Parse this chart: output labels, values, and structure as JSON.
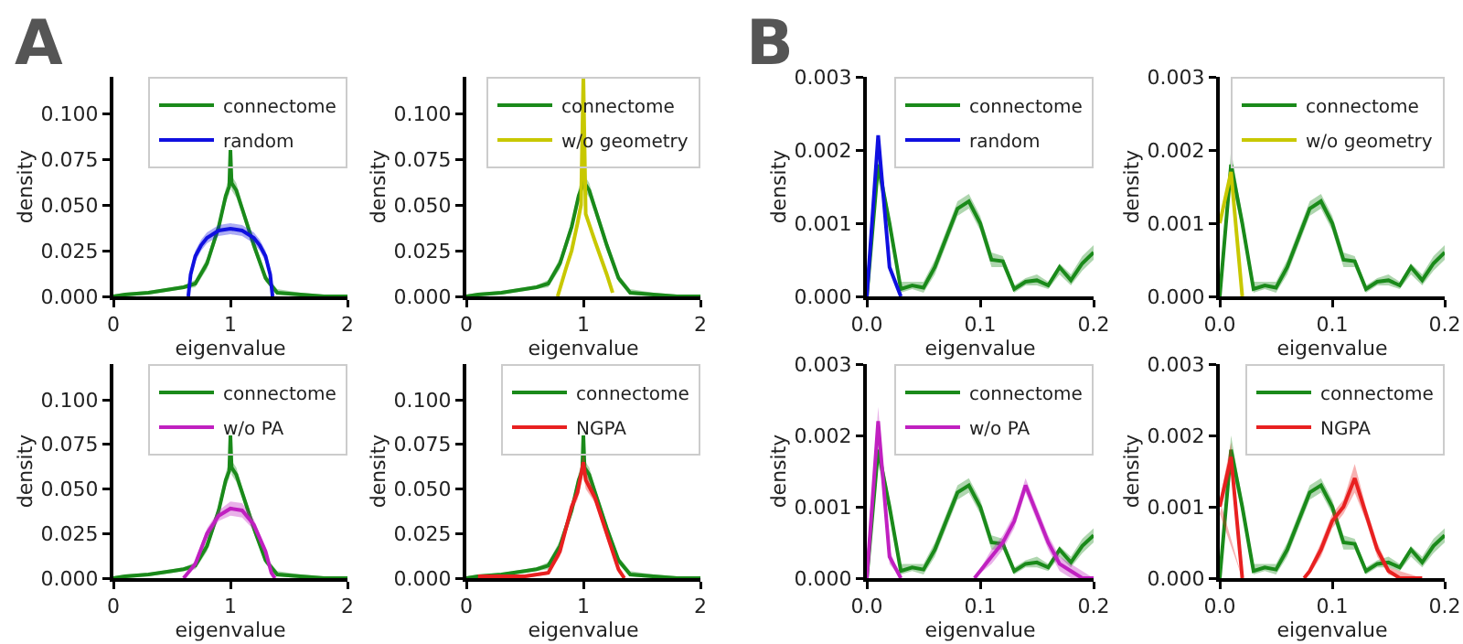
{
  "chart_data": [
    {
      "type": "line",
      "annotations": [
        "A"
      ],
      "xlabel": "eigenvalue",
      "ylabel": "density",
      "xlim": [
        0,
        2
      ],
      "xticks": [
        0,
        1,
        2
      ],
      "ylim": [
        0,
        0.12
      ],
      "yticks": [
        {
          "value": 0,
          "label": "0.000"
        },
        {
          "value": 0.025,
          "label": "0.025"
        },
        {
          "value": 0.05,
          "label": "0.050"
        },
        {
          "value": 0.075,
          "label": "0.075"
        },
        {
          "value": 0.1,
          "label": "0.100"
        }
      ],
      "grid": false,
      "legend": "top right",
      "series": [
        {
          "name": "connectome",
          "color": "#1a8a1a",
          "x": [
            0,
            0.1,
            0.3,
            0.5,
            0.6,
            0.7,
            0.8,
            0.9,
            0.96,
            0.99,
            1.0,
            1.01,
            1.05,
            1.1,
            1.2,
            1.3,
            1.4,
            1.6,
            1.8,
            2
          ],
          "values": [
            0,
            0.001,
            0.002,
            0.004,
            0.005,
            0.007,
            0.018,
            0.038,
            0.055,
            0.06,
            0.08,
            0.062,
            0.058,
            0.048,
            0.028,
            0.01,
            0.002,
            0.001,
            0,
            0
          ],
          "lower": [
            0,
            0,
            0.001,
            0.003,
            0.004,
            0.005,
            0.015,
            0.035,
            0.051,
            0.056,
            0.075,
            0.058,
            0.054,
            0.045,
            0.025,
            0.008,
            0.001,
            0,
            0,
            0
          ],
          "upper": [
            0.001,
            0.002,
            0.003,
            0.005,
            0.006,
            0.009,
            0.021,
            0.041,
            0.059,
            0.065,
            0.085,
            0.066,
            0.062,
            0.051,
            0.031,
            0.012,
            0.004,
            0.002,
            0.001,
            0
          ]
        },
        {
          "name": "random",
          "color": "#1010e0",
          "x": [
            0.64,
            0.66,
            0.7,
            0.75,
            0.8,
            0.9,
            1.0,
            1.1,
            1.2,
            1.25,
            1.3,
            1.34,
            1.36
          ],
          "values": [
            0,
            0.012,
            0.022,
            0.028,
            0.032,
            0.036,
            0.037,
            0.036,
            0.032,
            0.028,
            0.022,
            0.012,
            0
          ],
          "lower": [
            0,
            0.009,
            0.019,
            0.025,
            0.029,
            0.033,
            0.034,
            0.033,
            0.029,
            0.025,
            0.019,
            0.009,
            0
          ],
          "upper": [
            0,
            0.015,
            0.025,
            0.031,
            0.035,
            0.039,
            0.04,
            0.039,
            0.035,
            0.031,
            0.025,
            0.015,
            0
          ]
        }
      ]
    },
    {
      "type": "line",
      "xlabel": "eigenvalue",
      "ylabel": "density",
      "xlim": [
        0,
        2
      ],
      "xticks": [
        0,
        1,
        2
      ],
      "ylim": [
        0,
        0.12
      ],
      "yticks": [
        {
          "value": 0,
          "label": "0.000"
        },
        {
          "value": 0.025,
          "label": "0.025"
        },
        {
          "value": 0.05,
          "label": "0.050"
        },
        {
          "value": 0.075,
          "label": "0.075"
        },
        {
          "value": 0.1,
          "label": "0.100"
        }
      ],
      "grid": false,
      "legend": "top right",
      "series": [
        {
          "name": "connectome",
          "color": "#1a8a1a",
          "x": [
            0,
            0.1,
            0.3,
            0.5,
            0.6,
            0.7,
            0.8,
            0.9,
            0.96,
            0.99,
            1.0,
            1.01,
            1.05,
            1.1,
            1.2,
            1.3,
            1.4,
            1.6,
            1.8,
            2
          ],
          "values": [
            0,
            0.001,
            0.002,
            0.004,
            0.005,
            0.007,
            0.018,
            0.038,
            0.055,
            0.06,
            0.065,
            0.062,
            0.058,
            0.048,
            0.028,
            0.01,
            0.002,
            0.001,
            0,
            0
          ],
          "lower": [
            0,
            0,
            0.001,
            0.003,
            0.004,
            0.005,
            0.015,
            0.035,
            0.051,
            0.056,
            0.06,
            0.058,
            0.054,
            0.045,
            0.025,
            0.008,
            0.001,
            0,
            0,
            0
          ],
          "upper": [
            0.001,
            0.002,
            0.003,
            0.005,
            0.006,
            0.009,
            0.021,
            0.041,
            0.059,
            0.065,
            0.07,
            0.066,
            0.062,
            0.051,
            0.031,
            0.012,
            0.004,
            0.002,
            0.001,
            0
          ]
        },
        {
          "name": "w/o geometry",
          "color": "#c8c800",
          "x": [
            0.78,
            0.85,
            0.9,
            0.95,
            0.98,
            1.0,
            1.02,
            1.1,
            1.2,
            1.25
          ],
          "values": [
            0,
            0.015,
            0.025,
            0.04,
            0.05,
            0.12,
            0.045,
            0.03,
            0.012,
            0.002
          ]
        }
      ]
    },
    {
      "type": "line",
      "xlabel": "eigenvalue",
      "ylabel": "density",
      "xlim": [
        0,
        2
      ],
      "xticks": [
        0,
        1,
        2
      ],
      "ylim": [
        0,
        0.12
      ],
      "yticks": [
        {
          "value": 0,
          "label": "0.000"
        },
        {
          "value": 0.025,
          "label": "0.025"
        },
        {
          "value": 0.05,
          "label": "0.050"
        },
        {
          "value": 0.075,
          "label": "0.075"
        },
        {
          "value": 0.1,
          "label": "0.100"
        }
      ],
      "grid": false,
      "legend": "top right",
      "series": [
        {
          "name": "connectome",
          "color": "#1a8a1a",
          "x": [
            0,
            0.1,
            0.3,
            0.5,
            0.6,
            0.7,
            0.8,
            0.9,
            0.96,
            0.99,
            1.0,
            1.01,
            1.05,
            1.1,
            1.2,
            1.3,
            1.4,
            1.6,
            1.8,
            2
          ],
          "values": [
            0,
            0.001,
            0.002,
            0.004,
            0.005,
            0.007,
            0.018,
            0.038,
            0.055,
            0.06,
            0.08,
            0.062,
            0.058,
            0.048,
            0.028,
            0.01,
            0.002,
            0.001,
            0,
            0
          ],
          "lower": [
            0,
            0,
            0.001,
            0.003,
            0.004,
            0.005,
            0.015,
            0.035,
            0.051,
            0.056,
            0.075,
            0.058,
            0.054,
            0.045,
            0.025,
            0.008,
            0.001,
            0,
            0,
            0
          ],
          "upper": [
            0.001,
            0.002,
            0.003,
            0.005,
            0.006,
            0.009,
            0.021,
            0.041,
            0.059,
            0.065,
            0.085,
            0.066,
            0.062,
            0.051,
            0.031,
            0.012,
            0.004,
            0.002,
            0.001,
            0
          ]
        },
        {
          "name": "w/o PA",
          "color": "#c020c0",
          "x": [
            0.6,
            0.7,
            0.8,
            0.9,
            1.0,
            1.1,
            1.2,
            1.3,
            1.35,
            1.38
          ],
          "values": [
            0,
            0.008,
            0.025,
            0.035,
            0.039,
            0.038,
            0.03,
            0.015,
            0.003,
            0
          ],
          "lower": [
            0,
            0.006,
            0.022,
            0.032,
            0.035,
            0.034,
            0.027,
            0.013,
            0.002,
            0
          ],
          "upper": [
            0,
            0.01,
            0.028,
            0.038,
            0.043,
            0.042,
            0.033,
            0.017,
            0.004,
            0
          ]
        }
      ]
    },
    {
      "type": "line",
      "xlabel": "eigenvalue",
      "ylabel": "density",
      "xlim": [
        0,
        2
      ],
      "xticks": [
        0,
        1,
        2
      ],
      "ylim": [
        0,
        0.12
      ],
      "yticks": [
        {
          "value": 0,
          "label": "0.000"
        },
        {
          "value": 0.025,
          "label": "0.025"
        },
        {
          "value": 0.05,
          "label": "0.050"
        },
        {
          "value": 0.075,
          "label": "0.075"
        },
        {
          "value": 0.1,
          "label": "0.100"
        }
      ],
      "grid": false,
      "legend": "top right",
      "series": [
        {
          "name": "connectome",
          "color": "#1a8a1a",
          "x": [
            0,
            0.1,
            0.3,
            0.5,
            0.6,
            0.7,
            0.8,
            0.9,
            0.96,
            0.99,
            1.0,
            1.01,
            1.05,
            1.1,
            1.2,
            1.3,
            1.4,
            1.6,
            1.8,
            2
          ],
          "values": [
            0,
            0.001,
            0.002,
            0.004,
            0.005,
            0.007,
            0.018,
            0.038,
            0.055,
            0.06,
            0.08,
            0.062,
            0.058,
            0.048,
            0.028,
            0.01,
            0.002,
            0.001,
            0,
            0
          ],
          "lower": [
            0,
            0,
            0.001,
            0.003,
            0.004,
            0.005,
            0.015,
            0.035,
            0.051,
            0.056,
            0.075,
            0.058,
            0.054,
            0.045,
            0.025,
            0.008,
            0.001,
            0,
            0,
            0
          ],
          "upper": [
            0.001,
            0.002,
            0.003,
            0.005,
            0.006,
            0.009,
            0.021,
            0.041,
            0.059,
            0.065,
            0.085,
            0.066,
            0.062,
            0.051,
            0.031,
            0.012,
            0.004,
            0.002,
            0.001,
            0
          ]
        },
        {
          "name": "NGPA",
          "color": "#e82020",
          "x": [
            0.1,
            0.5,
            0.7,
            0.8,
            0.9,
            0.95,
            1.0,
            1.02,
            1.1,
            1.2,
            1.3,
            1.35
          ],
          "values": [
            0.001,
            0.001,
            0.003,
            0.015,
            0.04,
            0.048,
            0.065,
            0.055,
            0.045,
            0.025,
            0.005,
            0
          ],
          "lower": [
            0,
            0,
            0.002,
            0.012,
            0.037,
            0.044,
            0.058,
            0.05,
            0.042,
            0.022,
            0.003,
            0
          ],
          "upper": [
            0.002,
            0.002,
            0.004,
            0.018,
            0.043,
            0.052,
            0.07,
            0.06,
            0.048,
            0.028,
            0.007,
            0
          ]
        }
      ]
    },
    {
      "type": "line",
      "annotations": [
        "B"
      ],
      "xlabel": "eigenvalue",
      "ylabel": "density",
      "xlim": [
        0,
        0.2
      ],
      "xticks": [
        {
          "value": 0,
          "label": "0.0"
        },
        {
          "value": 0.1,
          "label": "0.1"
        },
        {
          "value": 0.2,
          "label": "0.2"
        }
      ],
      "ylim": [
        0,
        0.003
      ],
      "yticks": [
        {
          "value": 0,
          "label": "0.000"
        },
        0.001,
        0.002,
        0.003
      ],
      "grid": false,
      "legend": "top right",
      "series": [
        {
          "name": "connectome",
          "color": "#1a8a1a",
          "x": [
            0,
            0.01,
            0.02,
            0.03,
            0.04,
            0.05,
            0.06,
            0.07,
            0.08,
            0.09,
            0.1,
            0.11,
            0.12,
            0.13,
            0.14,
            0.15,
            0.16,
            0.17,
            0.18,
            0.19,
            0.2
          ],
          "values": [
            0,
            0.0018,
            0.001,
            0.0001,
            0.00015,
            0.00012,
            0.0004,
            0.0008,
            0.0012,
            0.0013,
            0.001,
            0.0005,
            0.00048,
            0.0001,
            0.0002,
            0.00022,
            0.00015,
            0.0004,
            0.00022,
            0.00045,
            0.0006
          ],
          "lower": [
            0,
            0.0016,
            0.0009,
            5e-05,
            0.0001,
            5e-05,
            0.0003,
            0.0007,
            0.0011,
            0.0012,
            0.0009,
            0.0004,
            0.0004,
            5e-05,
            0.00015,
            0.00015,
            0.0001,
            0.0003,
            0.00015,
            0.00035,
            0.0005
          ],
          "upper": [
            0,
            0.002,
            0.0011,
            0.0002,
            0.0002,
            0.0002,
            0.0005,
            0.0009,
            0.0013,
            0.0014,
            0.0011,
            0.0006,
            0.00055,
            0.00015,
            0.00025,
            0.0003,
            0.0002,
            0.00045,
            0.0003,
            0.00055,
            0.0007
          ]
        },
        {
          "name": "random",
          "color": "#1010e0",
          "x": [
            0,
            0.01,
            0.02,
            0.03
          ],
          "values": [
            0,
            0.0022,
            0.0004,
            0
          ]
        }
      ]
    },
    {
      "type": "line",
      "xlabel": "eigenvalue",
      "ylabel": "density",
      "xlim": [
        0,
        0.2
      ],
      "xticks": [
        {
          "value": 0,
          "label": "0.0"
        },
        {
          "value": 0.1,
          "label": "0.1"
        },
        {
          "value": 0.2,
          "label": "0.2"
        }
      ],
      "ylim": [
        0,
        0.003
      ],
      "yticks": [
        {
          "value": 0,
          "label": "0.000"
        },
        0.001,
        0.002,
        0.003
      ],
      "grid": false,
      "legend": "top right",
      "series": [
        {
          "name": "connectome",
          "color": "#1a8a1a",
          "x": [
            0,
            0.01,
            0.02,
            0.03,
            0.04,
            0.05,
            0.06,
            0.07,
            0.08,
            0.09,
            0.1,
            0.11,
            0.12,
            0.13,
            0.14,
            0.15,
            0.16,
            0.17,
            0.18,
            0.19,
            0.2
          ],
          "values": [
            0,
            0.0018,
            0.001,
            0.0001,
            0.00015,
            0.00012,
            0.0004,
            0.0008,
            0.0012,
            0.0013,
            0.001,
            0.0005,
            0.00048,
            0.0001,
            0.0002,
            0.00022,
            0.00015,
            0.0004,
            0.00022,
            0.00045,
            0.0006
          ],
          "lower": [
            0,
            0.0016,
            0.0009,
            5e-05,
            0.0001,
            5e-05,
            0.0003,
            0.0007,
            0.0011,
            0.0012,
            0.0009,
            0.0004,
            0.0004,
            5e-05,
            0.00015,
            0.00015,
            0.0001,
            0.0003,
            0.00015,
            0.00035,
            0.0005
          ],
          "upper": [
            0,
            0.002,
            0.0011,
            0.0002,
            0.0002,
            0.0002,
            0.0005,
            0.0009,
            0.0013,
            0.0014,
            0.0011,
            0.0006,
            0.00055,
            0.00015,
            0.00025,
            0.0003,
            0.0002,
            0.00045,
            0.0003,
            0.00055,
            0.0007
          ]
        },
        {
          "name": "w/o geometry",
          "color": "#c8c800",
          "x": [
            0,
            0.01,
            0.02
          ],
          "values": [
            0.001,
            0.0017,
            0
          ]
        }
      ]
    },
    {
      "type": "line",
      "xlabel": "eigenvalue",
      "ylabel": "density",
      "xlim": [
        0,
        0.2
      ],
      "xticks": [
        {
          "value": 0,
          "label": "0.0"
        },
        {
          "value": 0.1,
          "label": "0.1"
        },
        {
          "value": 0.2,
          "label": "0.2"
        }
      ],
      "ylim": [
        0,
        0.003
      ],
      "yticks": [
        {
          "value": 0,
          "label": "0.000"
        },
        0.001,
        0.002,
        0.003
      ],
      "grid": false,
      "legend": "top right",
      "series": [
        {
          "name": "connectome",
          "color": "#1a8a1a",
          "x": [
            0,
            0.01,
            0.02,
            0.03,
            0.04,
            0.05,
            0.06,
            0.07,
            0.08,
            0.09,
            0.1,
            0.11,
            0.12,
            0.13,
            0.14,
            0.15,
            0.16,
            0.17,
            0.18,
            0.19,
            0.2
          ],
          "values": [
            0,
            0.0018,
            0.001,
            0.0001,
            0.00015,
            0.00012,
            0.0004,
            0.0008,
            0.0012,
            0.0013,
            0.001,
            0.0005,
            0.00048,
            0.0001,
            0.0002,
            0.00022,
            0.00015,
            0.0004,
            0.00022,
            0.00045,
            0.0006
          ],
          "lower": [
            0,
            0.0016,
            0.0009,
            5e-05,
            0.0001,
            5e-05,
            0.0003,
            0.0007,
            0.0011,
            0.0012,
            0.0009,
            0.0004,
            0.0004,
            5e-05,
            0.00015,
            0.00015,
            0.0001,
            0.0003,
            0.00015,
            0.00035,
            0.0005
          ],
          "upper": [
            0,
            0.002,
            0.0011,
            0.0002,
            0.0002,
            0.0002,
            0.0005,
            0.0009,
            0.0013,
            0.0014,
            0.0011,
            0.0006,
            0.00055,
            0.00015,
            0.00025,
            0.0003,
            0.0002,
            0.00045,
            0.0003,
            0.00055,
            0.0007
          ]
        },
        {
          "name": "w/o PA",
          "color": "#c020c0",
          "x": [
            0,
            0.01,
            0.02,
            0.03,
            0.06,
            0.095,
            0.11,
            0.12,
            0.13,
            0.14,
            0.15,
            0.16,
            0.17,
            0.18,
            0.19,
            0.2
          ],
          "values": [
            0,
            0.0022,
            0.0003,
            0,
            null,
            0,
            0.0003,
            0.0005,
            0.0008,
            0.0013,
            0.0009,
            0.0005,
            0.0002,
            0.0001,
            0,
            0
          ],
          "lower": [
            0,
            0.002,
            0.0002,
            0,
            null,
            0,
            0.0002,
            0.0004,
            0.0007,
            0.0012,
            0.0008,
            0.0004,
            0.0001,
            0,
            0,
            0
          ],
          "upper": [
            0,
            0.0024,
            0.0004,
            0,
            null,
            0,
            0.0004,
            0.0006,
            0.0009,
            0.0014,
            0.001,
            0.0006,
            0.0003,
            0.0002,
            0.0001,
            0
          ]
        }
      ]
    },
    {
      "type": "line",
      "xlabel": "eigenvalue",
      "ylabel": "density",
      "xlim": [
        0,
        0.2
      ],
      "xticks": [
        {
          "value": 0,
          "label": "0.0"
        },
        {
          "value": 0.1,
          "label": "0.1"
        },
        {
          "value": 0.2,
          "label": "0.2"
        }
      ],
      "ylim": [
        0,
        0.003
      ],
      "yticks": [
        {
          "value": 0,
          "label": "0.000"
        },
        0.001,
        0.002,
        0.003
      ],
      "grid": false,
      "legend": "top right",
      "series": [
        {
          "name": "connectome",
          "color": "#1a8a1a",
          "x": [
            0,
            0.01,
            0.02,
            0.03,
            0.04,
            0.05,
            0.06,
            0.07,
            0.08,
            0.09,
            0.1,
            0.11,
            0.12,
            0.13,
            0.14,
            0.15,
            0.16,
            0.17,
            0.18,
            0.19,
            0.2
          ],
          "values": [
            0,
            0.0018,
            0.001,
            0.0001,
            0.00015,
            0.00012,
            0.0004,
            0.0008,
            0.0012,
            0.0013,
            0.001,
            0.0005,
            0.00048,
            0.0001,
            0.0002,
            0.00022,
            0.00015,
            0.0004,
            0.00022,
            0.00045,
            0.0006
          ],
          "lower": [
            0,
            0.0016,
            0.0009,
            5e-05,
            0.0001,
            5e-05,
            0.0003,
            0.0007,
            0.0011,
            0.0012,
            0.0009,
            0.0004,
            0.0004,
            5e-05,
            0.00015,
            0.00015,
            0.0001,
            0.0003,
            0.00015,
            0.00035,
            0.0005
          ],
          "upper": [
            0,
            0.002,
            0.0011,
            0.0002,
            0.0002,
            0.0002,
            0.0005,
            0.0009,
            0.0013,
            0.0014,
            0.0011,
            0.0006,
            0.00055,
            0.00015,
            0.00025,
            0.0003,
            0.0002,
            0.00045,
            0.0003,
            0.00055,
            0.0007
          ]
        },
        {
          "name": "NGPA",
          "color": "#e82020",
          "x": [
            0,
            0.01,
            0.02,
            0.05,
            0.075,
            0.08,
            0.09,
            0.1,
            0.11,
            0.12,
            0.13,
            0.14,
            0.15,
            0.16,
            0.17,
            0.18
          ],
          "values": [
            0.001,
            0.0017,
            0,
            null,
            0,
            0.0001,
            0.0004,
            0.0008,
            0.001,
            0.0014,
            0.0009,
            0.0004,
            0.0001,
            0,
            0,
            0
          ],
          "lower": [
            0.0009,
            0.0015,
            0,
            null,
            0,
            5e-05,
            0.0003,
            0.0007,
            0.0009,
            0.0012,
            0.0008,
            0.0003,
            5e-05,
            0,
            0,
            0
          ],
          "upper": [
            0.0011,
            0.0019,
            0,
            null,
            0,
            0.00015,
            0.0005,
            0.0009,
            0.0011,
            0.0016,
            0.001,
            0.0005,
            0.00015,
            0.0001,
            5e-05,
            0
          ]
        }
      ]
    }
  ]
}
